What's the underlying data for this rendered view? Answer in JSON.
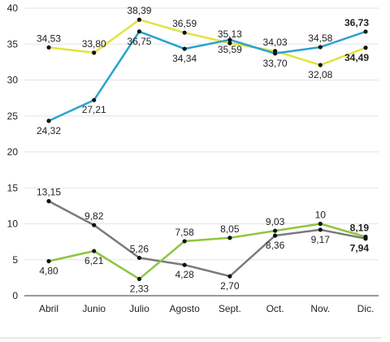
{
  "chart_data": {
    "type": "line",
    "categories": [
      "Abril",
      "Junio",
      "Julio",
      "Agosto",
      "Sept.",
      "Oct.",
      "Nov.",
      "Dic."
    ],
    "ylim": [
      0,
      40
    ],
    "yticks": [
      0,
      5,
      10,
      15,
      20,
      25,
      30,
      35,
      40
    ],
    "grid": true,
    "legend": "none",
    "series": [
      {
        "color": "#e3e33a",
        "values": [
          34.53,
          33.8,
          38.39,
          36.59,
          35.13,
          34.03,
          32.08,
          34.49
        ],
        "labels": [
          "34,53",
          "33,80",
          "38,39",
          "36,59",
          "35,13",
          "34,03",
          "32,08",
          "34,49"
        ],
        "label_pos": [
          "above",
          "above",
          "above",
          "above",
          "above",
          "above",
          "below",
          "below"
        ],
        "last_bold": true
      },
      {
        "color": "#2aa3cf",
        "values": [
          24.32,
          27.21,
          36.75,
          34.34,
          35.59,
          33.7,
          34.58,
          36.73
        ],
        "labels": [
          "24,32",
          "27,21",
          "36,75",
          "34,34",
          "35,59",
          "33,70",
          "34,58",
          "36,73"
        ],
        "label_pos": [
          "below",
          "below",
          "below",
          "below",
          "below",
          "below",
          "above",
          "above"
        ],
        "last_bold": true
      },
      {
        "color": "#7a7a7a",
        "values": [
          13.15,
          9.82,
          5.26,
          4.28,
          2.7,
          8.36,
          9.17,
          7.94
        ],
        "labels": [
          "13,15",
          "9,82",
          "5,26",
          "4,28",
          "2,70",
          "8,36",
          "9,17",
          "7,94"
        ],
        "label_pos": [
          "above",
          "above",
          "above",
          "below",
          "below",
          "below",
          "below",
          "below"
        ],
        "last_bold": true
      },
      {
        "color": "#8cc63f",
        "values": [
          4.8,
          6.21,
          2.33,
          7.58,
          8.05,
          9.03,
          10,
          8.19
        ],
        "labels": [
          "4,80",
          "6,21",
          "2,33",
          "7,58",
          "8,05",
          "9,03",
          "10",
          "8,19"
        ],
        "label_pos": [
          "below",
          "below",
          "below",
          "above",
          "above",
          "above",
          "above",
          "above"
        ],
        "last_bold": true
      }
    ]
  }
}
